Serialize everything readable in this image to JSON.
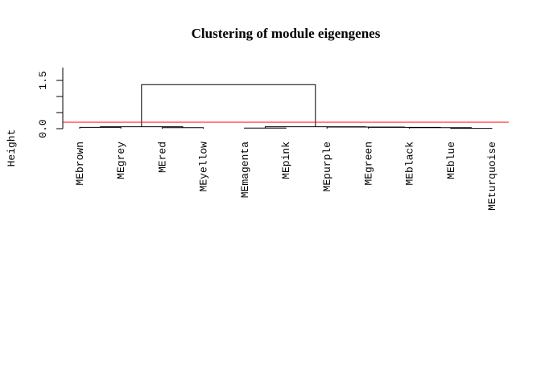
{
  "chart_data": {
    "type": "dendrogram",
    "title": "Clustering of module eigengenes",
    "ylabel": "Height",
    "yticks": [
      "0.0",
      "1.5"
    ],
    "ylim": [
      0,
      1.5
    ],
    "leaves": [
      "MEbrown",
      "MEgrey",
      "MEred",
      "MEyellow",
      "MEmagenta",
      "MEpink",
      "MEpurple",
      "MEgreen",
      "MEblack",
      "MEblue",
      "MEturquoise"
    ],
    "merges": [
      {
        "a": 10,
        "b": 11,
        "h": 0.01
      },
      {
        "a": 9,
        "b": 12,
        "h": 0.03
      },
      {
        "a": 8,
        "b": 13,
        "h": 0.04
      },
      {
        "a": 5,
        "b": 6,
        "h": 0.02
      },
      {
        "a": 7,
        "b": 14,
        "h": 0.05
      },
      {
        "a": 15,
        "b": 16,
        "h": 0.06
      },
      {
        "a": 1,
        "b": 2,
        "h": 0.04
      },
      {
        "a": 3,
        "b": 4,
        "h": 0.03
      },
      {
        "a": 18,
        "b": 19,
        "h": 0.06
      },
      {
        "a": 20,
        "b": 17,
        "h": 1.37
      }
    ],
    "cut_height": 0.2,
    "cut_color": "#ff0000"
  }
}
